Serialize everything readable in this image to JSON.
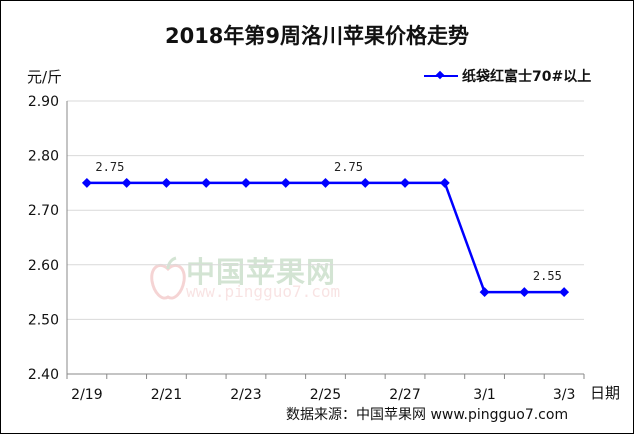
{
  "chart_data": {
    "type": "line",
    "title": "2018年第9周洛川苹果价格走势",
    "ylabel": "元/斤",
    "xlabel": "日期",
    "ylim": [
      2.4,
      2.9
    ],
    "yticks": [
      "2.90",
      "2.80",
      "2.70",
      "2.60",
      "2.50",
      "2.40"
    ],
    "x_tick_labels": [
      "2/19",
      "2/21",
      "2/23",
      "2/25",
      "2/27",
      "3/1",
      "3/3"
    ],
    "x": [
      "2/19",
      "2/20",
      "2/21",
      "2/22",
      "2/23",
      "2/24",
      "2/25",
      "2/26",
      "2/27",
      "2/28",
      "3/1",
      "3/2",
      "3/3"
    ],
    "series": [
      {
        "name": "纸袋红富士70#以上",
        "color": "#0000ff",
        "values": [
          2.75,
          2.75,
          2.75,
          2.75,
          2.75,
          2.75,
          2.75,
          2.75,
          2.75,
          2.75,
          2.55,
          2.55,
          2.55
        ]
      }
    ],
    "data_labels": [
      {
        "index": 0,
        "text": "2.75"
      },
      {
        "index": 6,
        "text": "2.75"
      },
      {
        "index": 11,
        "text": "2.55"
      }
    ],
    "grid": "horizontal",
    "legend": "top-right"
  },
  "source": "数据来源：中国苹果网 www.pingguo7.com",
  "watermark": {
    "name": "中国苹果网",
    "url": "www.pingguo7.com",
    "icon": "apple-logo-icon"
  }
}
